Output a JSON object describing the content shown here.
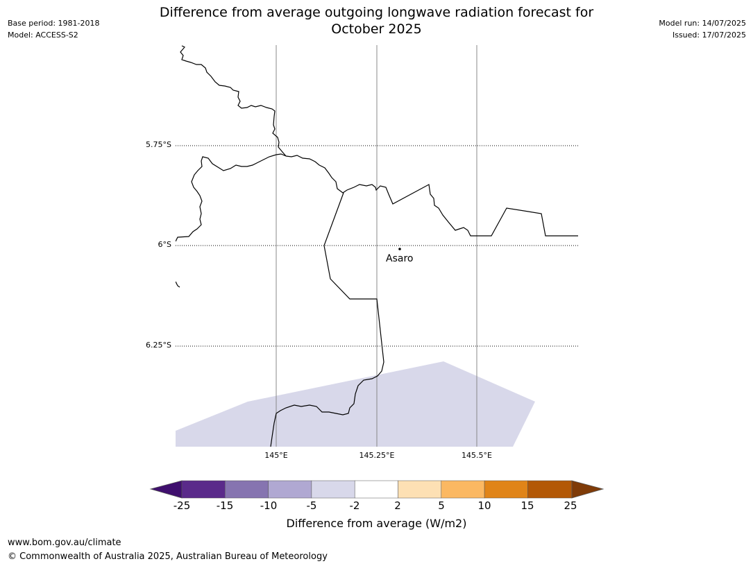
{
  "header": {
    "title_line1": "Difference from average outgoing longwave radiation forecast for",
    "title_line2": "October 2025",
    "base_period": "Base period: 1981-2018",
    "model": "Model: ACCESS-S2",
    "model_run": "Model run: 14/07/2025",
    "issued": "Issued: 17/07/2025"
  },
  "map": {
    "lat_labels": [
      "5.75°S",
      "6°S",
      "6.25°S"
    ],
    "lon_labels": [
      "145°E",
      "145.25°E",
      "145.5°E"
    ],
    "place_name": "Asaro",
    "anomaly_fill_color": "#d8d8ea",
    "border_color": "#000000",
    "gridline_color": "#888888"
  },
  "colorbar": {
    "title": "Difference from average (W/m2)",
    "ticks": [
      "-25",
      "-15",
      "-10",
      "-5",
      "-2",
      "2",
      "5",
      "10",
      "15",
      "25"
    ],
    "colors": [
      "#3f0f6e",
      "#5a2a8a",
      "#8674b0",
      "#b0a8d2",
      "#d8d8ea",
      "#ffffff",
      "#fde0b4",
      "#fbb862",
      "#e08418",
      "#b35806",
      "#7f3b08"
    ]
  },
  "footer": {
    "url": "www.bom.gov.au/climate",
    "copyright": "© Commonwealth of Australia 2025, Australian Bureau of Meteorology"
  }
}
